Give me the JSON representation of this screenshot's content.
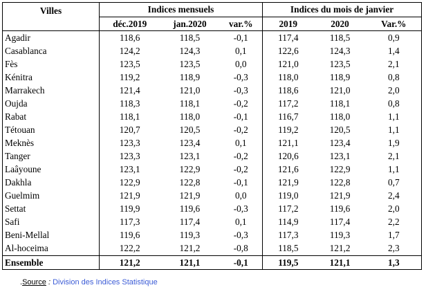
{
  "header": {
    "villes": "Villes",
    "group1": "Indices mensuels",
    "group2": "Indices du mois de janvier",
    "columns": [
      "déc.2019",
      "jan.2020",
      "var.%",
      "2019",
      "2020",
      "Var.%"
    ]
  },
  "rows": [
    {
      "city": "Agadir",
      "v": [
        "118,6",
        "118,5",
        "-0,1",
        "117,4",
        "118,5",
        "0,9"
      ]
    },
    {
      "city": "Casablanca",
      "v": [
        "124,2",
        "124,3",
        "0,1",
        "122,6",
        "124,3",
        "1,4"
      ]
    },
    {
      "city": "Fès",
      "v": [
        "123,5",
        "123,5",
        "0,0",
        "121,0",
        "123,5",
        "2,1"
      ]
    },
    {
      "city": "Kénitra",
      "v": [
        "119,2",
        "118,9",
        "-0,3",
        "118,0",
        "118,9",
        "0,8"
      ]
    },
    {
      "city": "Marrakech",
      "v": [
        "121,4",
        "121,0",
        "-0,3",
        "118,6",
        "121,0",
        "2,0"
      ]
    },
    {
      "city": "Oujda",
      "v": [
        "118,3",
        "118,1",
        "-0,2",
        "117,2",
        "118,1",
        "0,8"
      ]
    },
    {
      "city": "Rabat",
      "v": [
        "118,1",
        "118,0",
        "-0,1",
        "116,7",
        "118,0",
        "1,1"
      ]
    },
    {
      "city": "Tétouan",
      "v": [
        "120,7",
        "120,5",
        "-0,2",
        "119,2",
        "120,5",
        "1,1"
      ]
    },
    {
      "city": "Meknès",
      "v": [
        "123,3",
        "123,4",
        "0,1",
        "121,1",
        "123,4",
        "1,9"
      ]
    },
    {
      "city": "Tanger",
      "v": [
        "123,3",
        "123,1",
        "-0,2",
        "120,6",
        "123,1",
        "2,1"
      ]
    },
    {
      "city": "Laâyoune",
      "v": [
        "123,1",
        "122,9",
        "-0,2",
        "121,6",
        "122,9",
        "1,1"
      ]
    },
    {
      "city": "Dakhla",
      "v": [
        "122,9",
        "122,8",
        "-0,1",
        "121,9",
        "122,8",
        "0,7"
      ]
    },
    {
      "city": "Guelmim",
      "v": [
        "121,9",
        "121,9",
        "0,0",
        "119,0",
        "121,9",
        "2,4"
      ]
    },
    {
      "city": "Settat",
      "v": [
        "119,9",
        "119,6",
        "-0,3",
        "117,2",
        "119,6",
        "2,0"
      ]
    },
    {
      "city": "Safi",
      "v": [
        "117,3",
        "117,4",
        "0,1",
        "114,9",
        "117,4",
        "2,2"
      ]
    },
    {
      "city": "Beni-Mellal",
      "v": [
        "119,6",
        "119,3",
        "-0,3",
        "117,3",
        "119,3",
        "1,7"
      ]
    },
    {
      "city": "Al-hoceima",
      "v": [
        "122,2",
        "121,2",
        "-0,8",
        "118,5",
        "121,2",
        "2,3"
      ]
    }
  ],
  "total": {
    "city": "Ensemble",
    "v": [
      "121,2",
      "121,1",
      "-0,1",
      "119,5",
      "121,1",
      "1,3"
    ]
  },
  "footer": {
    "prefix": ".",
    "label": "Source",
    "colon": " : ",
    "text": "Division des Indices Statistique"
  }
}
